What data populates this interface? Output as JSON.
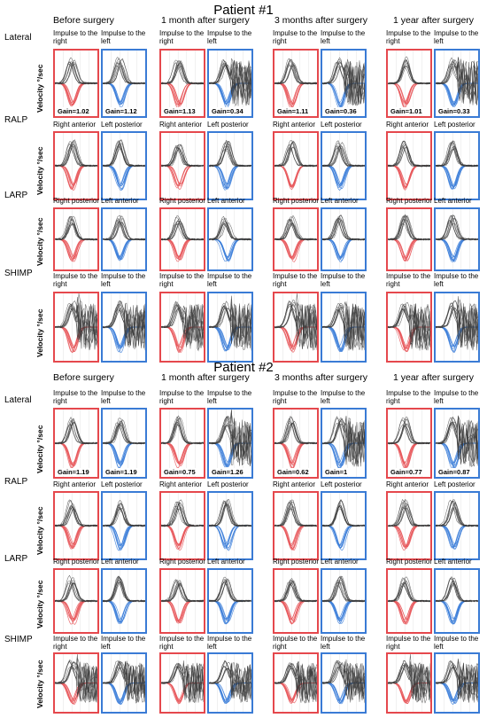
{
  "colors": {
    "right_border": "#e5484d",
    "left_border": "#3a7bd5",
    "trace_gray": "#3b3b3b",
    "trace_red": "#e8585c",
    "trace_blue": "#3d7fd9"
  },
  "patients": [
    {
      "title": "Patient #1",
      "columns": [
        "Before surgery",
        "1 month after surgery",
        "3 months after surgery",
        "1 year   after surgery"
      ],
      "rows": [
        {
          "label": "Lateral",
          "subheaders": [
            "Impulse to the right",
            "Impulse to the left"
          ],
          "gains": [
            [
              "Gain=1.02",
              "Gain=1.12"
            ],
            [
              "Gain=1.13",
              "Gain=0.34"
            ],
            [
              "Gain=1.11",
              "Gain=0.36"
            ],
            [
              "Gain=1.01",
              "Gain=0.33"
            ]
          ]
        },
        {
          "label": "RALP",
          "subheaders": [
            "Right anterior",
            "Left posterior"
          ]
        },
        {
          "label": "LARP",
          "subheaders": [
            "Right posterior",
            "Left anterior"
          ]
        },
        {
          "label": "SHIMP",
          "subheaders": [
            "Impulse to the right",
            "Impulse to the left"
          ]
        }
      ]
    },
    {
      "title": "Patient #2",
      "columns": [
        "Before surgery",
        "1 month after surgery",
        "3 months after surgery",
        "1 year   after surgery"
      ],
      "rows": [
        {
          "label": "Lateral",
          "subheaders": [
            "Impulse to the right",
            "Impulse to the left"
          ],
          "gains": [
            [
              "Gain=1.19",
              "Gain=1.19"
            ],
            [
              "Gain=0.75",
              "Gain=1.26"
            ],
            [
              "Gain=0.62",
              "Gain=1"
            ],
            [
              "Gain=0.77",
              "Gain=0.87"
            ]
          ]
        },
        {
          "label": "RALP",
          "subheaders": [
            "Right anterior",
            "Left posterior"
          ]
        },
        {
          "label": "LARP",
          "subheaders": [
            "Right posterior",
            "Left anterior"
          ]
        },
        {
          "label": "SHIMP",
          "subheaders": [
            "Impulse to the right",
            "Impulse to the left"
          ]
        }
      ]
    }
  ],
  "y_axis_label": "Velocity °/sec"
}
